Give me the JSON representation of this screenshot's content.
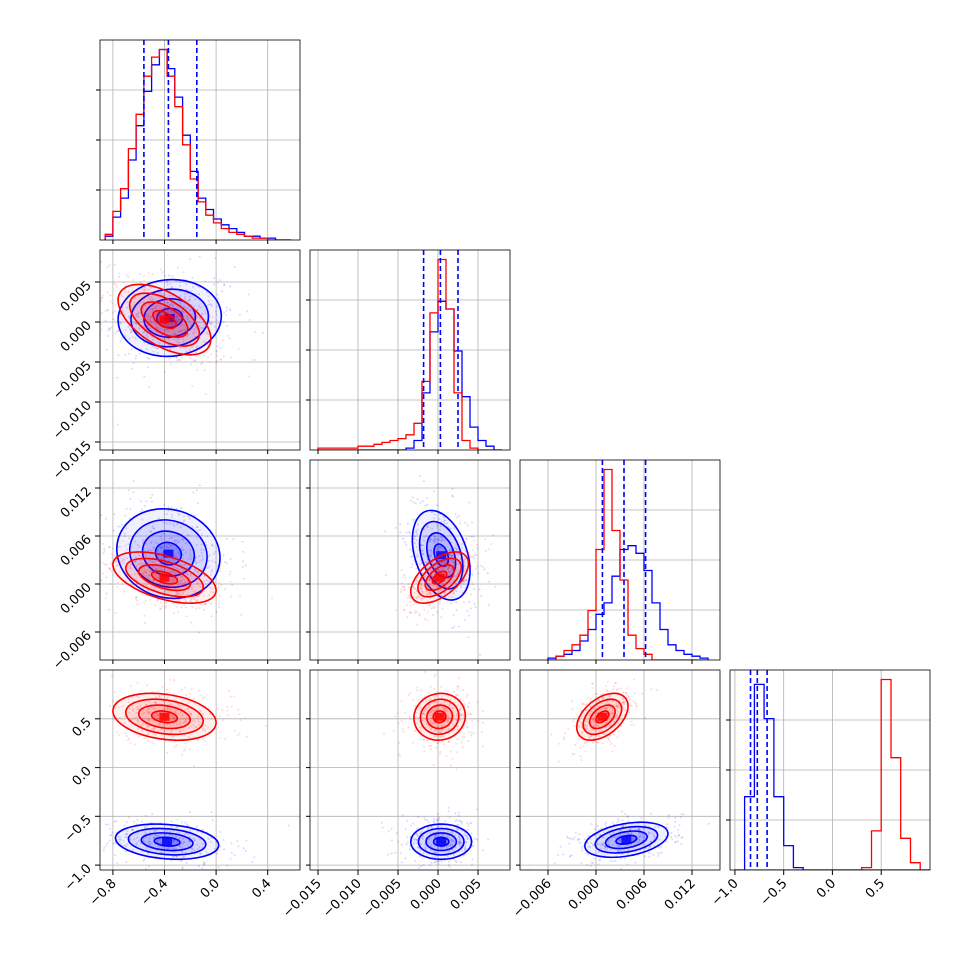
{
  "chart_data": {
    "type": "corner",
    "title": "",
    "grid": true,
    "colors": {
      "red": "#ff0000",
      "blue": "#0000ff",
      "grid": "#b0b0b0"
    },
    "parameters": [
      {
        "range": [
          -0.9,
          0.65
        ],
        "ticks": [
          -0.8,
          -0.4,
          0.0,
          0.4
        ],
        "tick_labels": [
          "−0.8",
          "−0.4",
          "0.0",
          "0.4"
        ]
      },
      {
        "range": [
          -0.016,
          0.009
        ],
        "ticks": [
          -0.015,
          -0.01,
          -0.005,
          0.0,
          0.005
        ],
        "tick_labels": [
          "−0.015",
          "−0.010",
          "−0.005",
          "0.000",
          "0.005"
        ]
      },
      {
        "range": [
          -0.0095,
          0.0155
        ],
        "ticks": [
          -0.006,
          0.0,
          0.006,
          0.012
        ],
        "tick_labels": [
          "−0.006",
          "0.000",
          "0.006",
          "0.012"
        ]
      },
      {
        "range": [
          -1.05,
          1.0
        ],
        "ticks": [
          -1.0,
          -0.5,
          0.0,
          0.5
        ],
        "tick_labels": [
          "−1.0",
          "−0.5",
          "0.0",
          "0.5"
        ]
      }
    ],
    "row_ticks": [
      null,
      {
        "ticks": [
          0.005,
          0.0,
          -0.005,
          -0.01,
          -0.015
        ],
        "tick_labels": [
          "0.005",
          "0.000",
          "−0.005",
          "−0.010",
          "−0.015"
        ]
      },
      {
        "ticks": [
          0.012,
          0.006,
          0.0,
          -0.006
        ],
        "tick_labels": [
          "0.012",
          "0.006",
          "0.000",
          "−0.006"
        ]
      },
      {
        "ticks": [
          0.5,
          0.0,
          -0.5,
          -1.0
        ],
        "tick_labels": [
          "0.5",
          "0.0",
          "−0.5",
          "−1.0"
        ]
      }
    ],
    "quantiles_blue": [
      [
        -0.56,
        -0.37,
        -0.15
      ],
      [
        -0.0018,
        0.0003,
        0.0025
      ],
      [
        0.0008,
        0.0035,
        0.0062
      ],
      [
        -0.84,
        -0.77,
        -0.67
      ]
    ],
    "hist": [
      {
        "edges": [
          -0.86,
          -0.8,
          -0.74,
          -0.68,
          -0.62,
          -0.56,
          -0.5,
          -0.44,
          -0.38,
          -0.32,
          -0.26,
          -0.2,
          -0.14,
          -0.08,
          -0.02,
          0.04,
          0.1,
          0.16,
          0.22,
          0.28,
          0.34,
          0.4,
          0.46,
          0.52,
          0.58
        ],
        "blue": [
          0.02,
          0.12,
          0.22,
          0.42,
          0.6,
          0.78,
          0.92,
          1.0,
          0.9,
          0.75,
          0.55,
          0.36,
          0.22,
          0.16,
          0.11,
          0.08,
          0.06,
          0.04,
          0.02,
          0.02,
          0.01,
          0.01,
          0.0,
          0.0
        ],
        "red": [
          0.03,
          0.15,
          0.27,
          0.48,
          0.66,
          0.86,
          0.96,
          1.0,
          0.86,
          0.7,
          0.5,
          0.32,
          0.2,
          0.13,
          0.09,
          0.06,
          0.04,
          0.03,
          0.02,
          0.01,
          0.01,
          0.0,
          0.0,
          0.0
        ]
      },
      {
        "edges": [
          -0.015,
          -0.014,
          -0.013,
          -0.012,
          -0.011,
          -0.01,
          -0.009,
          -0.008,
          -0.007,
          -0.006,
          -0.005,
          -0.004,
          -0.003,
          -0.002,
          -0.001,
          0.0,
          0.001,
          0.002,
          0.003,
          0.004,
          0.005,
          0.006,
          0.007,
          0.008
        ],
        "blue": [
          0,
          0,
          0,
          0,
          0,
          0,
          0,
          0,
          0,
          0,
          0,
          0.01,
          0.05,
          0.3,
          0.62,
          0.78,
          0.74,
          0.52,
          0.28,
          0.12,
          0.05,
          0.02,
          0
        ],
        "red": [
          0.01,
          0.01,
          0.01,
          0.01,
          0.01,
          0.02,
          0.02,
          0.03,
          0.04,
          0.05,
          0.06,
          0.08,
          0.14,
          0.36,
          0.72,
          1.0,
          0.74,
          0.3,
          0.05,
          0.01,
          0,
          0,
          0
        ]
      },
      {
        "edges": [
          -0.006,
          -0.005,
          -0.004,
          -0.003,
          -0.002,
          -0.001,
          0.0,
          0.001,
          0.002,
          0.003,
          0.004,
          0.005,
          0.006,
          0.007,
          0.008,
          0.009,
          0.01,
          0.011,
          0.012,
          0.013,
          0.014
        ],
        "blue": [
          0.01,
          0.02,
          0.03,
          0.05,
          0.1,
          0.16,
          0.24,
          0.3,
          0.44,
          0.58,
          0.6,
          0.56,
          0.47,
          0.3,
          0.16,
          0.08,
          0.05,
          0.03,
          0.02,
          0.01
        ],
        "red": [
          0.0,
          0.02,
          0.05,
          0.08,
          0.13,
          0.26,
          0.58,
          1.0,
          0.68,
          0.42,
          0.13,
          0.06,
          0.03,
          0.0,
          0,
          0,
          0,
          0,
          0,
          0
        ]
      },
      {
        "edges": [
          -1.0,
          -0.9,
          -0.8,
          -0.7,
          -0.6,
          -0.5,
          -0.4,
          -0.3,
          -0.2,
          -0.1,
          0.0,
          0.1,
          0.2,
          0.3,
          0.4,
          0.5,
          0.6,
          0.7,
          0.8,
          0.9,
          1.0
        ],
        "blue": [
          0.0,
          0.3,
          0.76,
          0.62,
          0.3,
          0.1,
          0.01,
          0,
          0,
          0,
          0,
          0,
          0,
          0,
          0,
          0,
          0,
          0,
          0,
          0
        ],
        "red": [
          0,
          0,
          0,
          0,
          0,
          0,
          0,
          0,
          0,
          0,
          0,
          0,
          0,
          0.01,
          0.16,
          0.78,
          0.46,
          0.13,
          0.03,
          0.0
        ]
      }
    ],
    "pairs": [
      {
        "row": 1,
        "col": 0,
        "blue": {
          "mean": [
            -0.36,
            0.0005
          ],
          "sd": [
            0.2,
            0.0024
          ],
          "rho": 0.05
        },
        "red": {
          "mean": [
            -0.4,
            0.0003
          ],
          "sd": [
            0.18,
            0.0022
          ],
          "rho": -0.55
        }
      },
      {
        "row": 2,
        "col": 0,
        "blue": {
          "mean": [
            -0.37,
            0.0038
          ],
          "sd": [
            0.2,
            0.0028
          ],
          "rho": -0.1
        },
        "red": {
          "mean": [
            -0.4,
            0.0008
          ],
          "sd": [
            0.2,
            0.0016
          ],
          "rho": -0.5
        }
      },
      {
        "row": 2,
        "col": 1,
        "blue": {
          "mean": [
            0.0004,
            0.0036
          ],
          "sd": [
            0.0018,
            0.0028
          ],
          "rho": -0.35
        },
        "red": {
          "mean": [
            0.0002,
            0.0008
          ],
          "sd": [
            0.0018,
            0.0016
          ],
          "rho": 0.55
        }
      },
      {
        "row": 3,
        "col": 0,
        "blue": {
          "mean": [
            -0.38,
            -0.76
          ],
          "sd": [
            0.2,
            0.09
          ],
          "rho": -0.2
        },
        "red": {
          "mean": [
            -0.4,
            0.52
          ],
          "sd": [
            0.2,
            0.12
          ],
          "rho": -0.25
        }
      },
      {
        "row": 3,
        "col": 1,
        "blue": {
          "mean": [
            0.0004,
            -0.76
          ],
          "sd": [
            0.0019,
            0.09
          ],
          "rho": 0.0
        },
        "red": {
          "mean": [
            0.0002,
            0.52
          ],
          "sd": [
            0.0016,
            0.12
          ],
          "rho": 0.05
        }
      },
      {
        "row": 3,
        "col": 2,
        "blue": {
          "mean": [
            0.0038,
            -0.74
          ],
          "sd": [
            0.0026,
            0.09
          ],
          "rho": 0.35
        },
        "red": {
          "mean": [
            0.0008,
            0.52
          ],
          "sd": [
            0.0016,
            0.12
          ],
          "rho": 0.45
        }
      }
    ]
  }
}
